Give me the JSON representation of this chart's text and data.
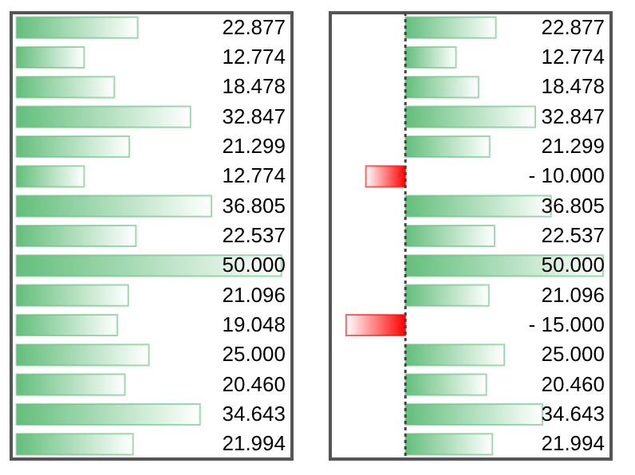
{
  "chart_data": [
    {
      "type": "bar",
      "orientation": "horizontal",
      "categories": [
        null,
        null,
        null,
        null,
        null,
        null,
        null,
        null,
        null,
        null,
        null,
        null,
        null,
        null,
        null
      ],
      "values": [
        22.877,
        12.774,
        18.478,
        32.847,
        21.299,
        12.774,
        36.805,
        22.537,
        50.0,
        21.096,
        19.048,
        25.0,
        20.46,
        34.643,
        21.994
      ],
      "value_labels": [
        "22.877",
        "12.774",
        "18.478",
        "32.847",
        "21.299",
        "12.774",
        "36.805",
        "22.537",
        "50.000",
        "21.096",
        "19.048",
        "25.000",
        "20.460",
        "34.643",
        "21.994"
      ],
      "colors": [
        "#63be7b",
        "#63be7b",
        "#63be7b",
        "#63be7b",
        "#63be7b",
        "#63be7b",
        "#63be7b",
        "#63be7b",
        "#63be7b",
        "#63be7b",
        "#63be7b",
        "#63be7b",
        "#63be7b",
        "#63be7b",
        "#63be7b"
      ],
      "xlim": [
        -1,
        52
      ]
    },
    {
      "type": "bar",
      "orientation": "horizontal",
      "categories": [
        null,
        null,
        null,
        null,
        null,
        null,
        null,
        null,
        null,
        null,
        null,
        null,
        null,
        null,
        null
      ],
      "values": [
        22.877,
        12.774,
        18.478,
        32.847,
        21.299,
        -10.0,
        36.805,
        22.537,
        50.0,
        21.096,
        -15.0,
        25.0,
        20.46,
        34.643,
        21.994
      ],
      "value_labels": [
        "22.877",
        "12.774",
        "18.478",
        "32.847",
        "21.299",
        "-  10.000",
        "36.805",
        "22.537",
        "50.000",
        "21.096",
        "-  15.000",
        "25.000",
        "20.460",
        "34.643",
        "21.994"
      ],
      "colors": [
        "#63be7b",
        "#63be7b",
        "#63be7b",
        "#63be7b",
        "#63be7b",
        "#ff0000",
        "#63be7b",
        "#63be7b",
        "#63be7b",
        "#63be7b",
        "#ff0000",
        "#63be7b",
        "#63be7b",
        "#63be7b",
        "#63be7b"
      ],
      "xlim": [
        -19,
        52
      ],
      "ref_lines": [
        {
          "axis": "x",
          "value": 0,
          "line_style": "dotted",
          "color": "#444444"
        }
      ]
    }
  ]
}
